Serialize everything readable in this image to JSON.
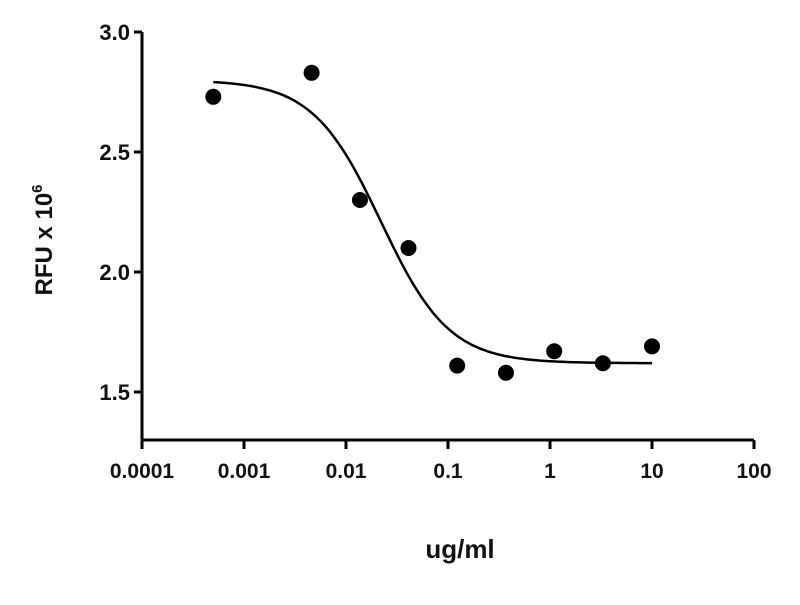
{
  "chart_data": {
    "type": "scatter",
    "title": "",
    "xlabel": "ug/ml",
    "ylabel": "RFU x 10",
    "ylabel_superscript": "6",
    "xscale": "log",
    "xlim": [
      0.0001,
      100
    ],
    "ylim": [
      1.3,
      3.0
    ],
    "grid": false,
    "x_ticks": [
      0.0001,
      0.001,
      0.01,
      0.1,
      1,
      10,
      100
    ],
    "x_tick_labels": [
      "0.0001",
      "0.001",
      "0.01",
      "0.1",
      "1",
      "10",
      "100"
    ],
    "y_ticks": [
      3.0,
      2.5,
      2.0,
      1.5
    ],
    "y_tick_labels": [
      "3.0",
      "2.5",
      "2.0",
      "1.5"
    ],
    "points": [
      {
        "x": 0.0005,
        "y": 2.73
      },
      {
        "x": 0.0046,
        "y": 2.83
      },
      {
        "x": 0.0137,
        "y": 2.3
      },
      {
        "x": 0.041,
        "y": 2.1
      },
      {
        "x": 0.123,
        "y": 1.61
      },
      {
        "x": 0.37,
        "y": 1.58
      },
      {
        "x": 1.1,
        "y": 1.67
      },
      {
        "x": 3.3,
        "y": 1.62
      },
      {
        "x": 10,
        "y": 1.69
      }
    ],
    "fit_curve": {
      "model": "4PL",
      "top": 2.8,
      "bottom": 1.62,
      "ec50": 0.022,
      "hill": 1.3,
      "x_range": [
        0.0005,
        10
      ]
    },
    "colors": {
      "points": "#000000",
      "curve": "#000000",
      "axes": "#000000"
    }
  }
}
